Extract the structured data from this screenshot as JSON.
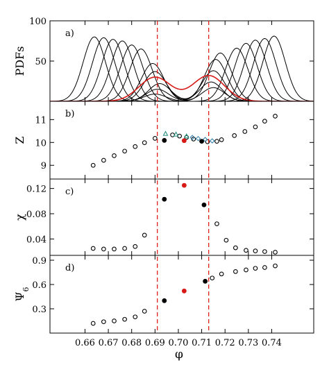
{
  "figure": {
    "xlabel": "φ",
    "x_ticks": [
      "0.66",
      "0.67",
      "0.68",
      "0.69",
      "0.70",
      "0.71",
      "0.72",
      "0.73",
      "0.74"
    ],
    "xlim": [
      0.645,
      0.758
    ],
    "vlines_x": [
      0.691,
      0.713
    ],
    "vline_color": "#e0201c",
    "highlight_color": "#d81a16"
  },
  "chart_data": [
    {
      "type": "line",
      "panel_label": "a)",
      "ylabel": "PDFs",
      "ylim": [
        0,
        100
      ],
      "y_ticks": [
        50,
        100
      ],
      "tick_labels": [
        "50",
        "100"
      ],
      "peaks": {
        "left": [
          {
            "center": 0.664,
            "sigma": 0.0048,
            "height": 80
          },
          {
            "center": 0.668,
            "sigma": 0.0048,
            "height": 79
          },
          {
            "center": 0.672,
            "sigma": 0.0048,
            "height": 77
          },
          {
            "center": 0.676,
            "sigma": 0.0048,
            "height": 75
          },
          {
            "center": 0.68,
            "sigma": 0.0048,
            "height": 70
          },
          {
            "center": 0.684,
            "sigma": 0.0048,
            "height": 65
          }
        ],
        "right": [
          {
            "center": 0.725,
            "sigma": 0.0048,
            "height": 66
          },
          {
            "center": 0.729,
            "sigma": 0.0048,
            "height": 72
          },
          {
            "center": 0.733,
            "sigma": 0.0048,
            "height": 76
          },
          {
            "center": 0.737,
            "sigma": 0.0048,
            "height": 78
          },
          {
            "center": 0.741,
            "sigma": 0.0048,
            "height": 81
          }
        ],
        "bimodal": [
          {
            "a": 0.689,
            "b": 0.715,
            "ha": 47,
            "hb": 17
          },
          {
            "a": 0.69,
            "b": 0.714,
            "ha": 37,
            "hb": 24
          },
          {
            "a": 0.692,
            "b": 0.715,
            "ha": 22,
            "hb": 38
          },
          {
            "a": 0.691,
            "b": 0.716,
            "ha": 15,
            "hb": 52
          },
          {
            "a": 0.69,
            "b": 0.718,
            "ha": 9,
            "hb": 60
          }
        ],
        "red": [
          {
            "a": 0.69,
            "b": 0.713,
            "ha": 30,
            "hb": 32,
            "sigma": 0.0068
          }
        ]
      }
    },
    {
      "type": "scatter",
      "panel_label": "b)",
      "ylabel": "Z",
      "ylim": [
        8.4,
        11.8
      ],
      "y_ticks": [
        9,
        10,
        11
      ],
      "tick_labels": [
        "9",
        "10",
        "11"
      ],
      "open_points": {
        "x": [
          0.6635,
          0.668,
          0.6725,
          0.677,
          0.6815,
          0.6855,
          0.69,
          0.6975,
          0.7005,
          0.7035,
          0.7065,
          0.7125,
          0.7165,
          0.7185,
          0.724,
          0.7285,
          0.733,
          0.737,
          0.7415
        ],
        "y": [
          9.0,
          9.22,
          9.42,
          9.62,
          9.82,
          9.99,
          10.18,
          10.33,
          10.28,
          10.22,
          10.15,
          10.03,
          10.05,
          10.12,
          10.3,
          10.48,
          10.68,
          10.93,
          11.15
        ]
      },
      "filled_black": {
        "x": [
          0.694,
          0.71
        ],
        "y": [
          10.09,
          10.05
        ]
      },
      "filled_red": {
        "x": [
          0.7025
        ],
        "y": [
          10.08
        ]
      },
      "triangles": {
        "x": [
          0.6945,
          0.699,
          0.7035
        ],
        "y": [
          10.38,
          10.35,
          10.27
        ]
      },
      "diamonds": {
        "x": [
          0.706,
          0.7085,
          0.7115,
          0.7145
        ],
        "y": [
          10.22,
          10.17,
          10.13,
          10.07
        ]
      }
    },
    {
      "type": "scatter",
      "panel_label": "c)",
      "ylabel": "χ",
      "ylim": [
        0.014,
        0.135
      ],
      "y_ticks": [
        0.04,
        0.08,
        0.12
      ],
      "tick_labels": [
        "0.04",
        "0.08",
        "0.12"
      ],
      "open_points": {
        "x": [
          0.6635,
          0.668,
          0.6725,
          0.677,
          0.6815,
          0.6855,
          0.7165,
          0.7205,
          0.7245,
          0.729,
          0.733,
          0.737,
          0.7415
        ],
        "y": [
          0.025,
          0.024,
          0.024,
          0.025,
          0.028,
          0.046,
          0.064,
          0.038,
          0.026,
          0.022,
          0.021,
          0.02,
          0.019
        ]
      },
      "filled_black": {
        "x": [
          0.694,
          0.711
        ],
        "y": [
          0.103,
          0.094
        ]
      },
      "filled_red": {
        "x": [
          0.7025
        ],
        "y": [
          0.125
        ]
      }
    },
    {
      "type": "scatter",
      "panel_label": "d)",
      "ylabel": "Ψ",
      "ylabel_sub": "6",
      "ylim": [
        0.0,
        0.96
      ],
      "y_ticks": [
        0.3,
        0.6,
        0.9
      ],
      "tick_labels": [
        "0.3",
        "0.6",
        "0.9"
      ],
      "open_points": {
        "x": [
          0.6635,
          0.668,
          0.6725,
          0.677,
          0.6815,
          0.6855,
          0.7145,
          0.7185,
          0.7245,
          0.729,
          0.733,
          0.737,
          0.7415
        ],
        "y": [
          0.12,
          0.14,
          0.15,
          0.17,
          0.2,
          0.27,
          0.68,
          0.73,
          0.76,
          0.78,
          0.8,
          0.81,
          0.83
        ]
      },
      "filled_black": {
        "x": [
          0.694,
          0.7115
        ],
        "y": [
          0.4,
          0.64
        ]
      },
      "filled_red": {
        "x": [
          0.7025
        ],
        "y": [
          0.52
        ]
      }
    }
  ]
}
